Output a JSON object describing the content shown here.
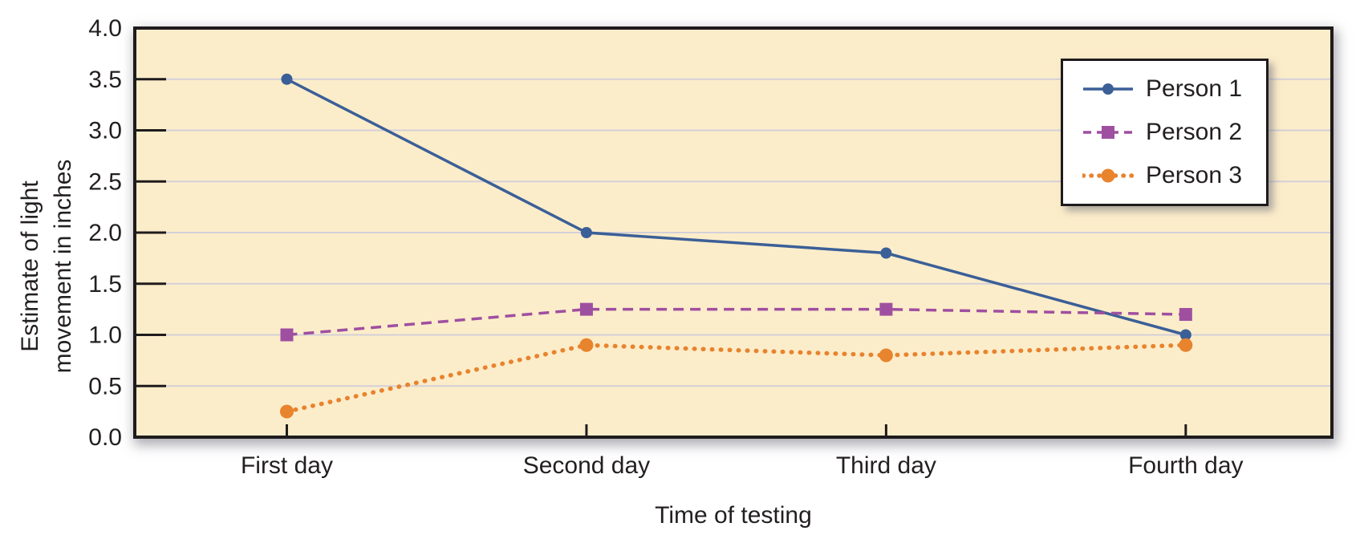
{
  "figure": {
    "background": "#ffffff",
    "plot_bg": "#fcedca",
    "grid_color": "#d3d0d8",
    "axis_color": "#1f1b1c",
    "text_color": "#231f20"
  },
  "chart_data": {
    "type": "line",
    "title": "",
    "xlabel": "Time of testing",
    "ylabel": "Estimate of light movement in inches",
    "ylabel_lines": [
      "Estimate of light",
      "movement in inches"
    ],
    "categories": [
      "First day",
      "Second day",
      "Third day",
      "Fourth day"
    ],
    "y_ticks": [
      4.0,
      3.5,
      3.0,
      2.5,
      2.0,
      1.5,
      1.0,
      0.5,
      0.0
    ],
    "y_tick_labels": [
      "4.0",
      "3.5",
      "3.0",
      "2.5",
      "2.0",
      "1.5",
      "1.0",
      "0.5",
      "0.0"
    ],
    "ylim": [
      0,
      4
    ],
    "grid": true,
    "legend_position": "top-right",
    "series": [
      {
        "name": "Person 1",
        "values": [
          3.5,
          2.0,
          1.8,
          1.0
        ],
        "color": "#3b5f97",
        "line_style": "solid",
        "marker": "circle"
      },
      {
        "name": "Person 2",
        "values": [
          1.0,
          1.25,
          1.25,
          1.2
        ],
        "color": "#9f4fa0",
        "line_style": "dashed",
        "marker": "square"
      },
      {
        "name": "Person 3",
        "values": [
          0.25,
          0.9,
          0.8,
          0.9
        ],
        "color": "#e8832e",
        "line_style": "dotted",
        "marker": "circle"
      }
    ]
  }
}
